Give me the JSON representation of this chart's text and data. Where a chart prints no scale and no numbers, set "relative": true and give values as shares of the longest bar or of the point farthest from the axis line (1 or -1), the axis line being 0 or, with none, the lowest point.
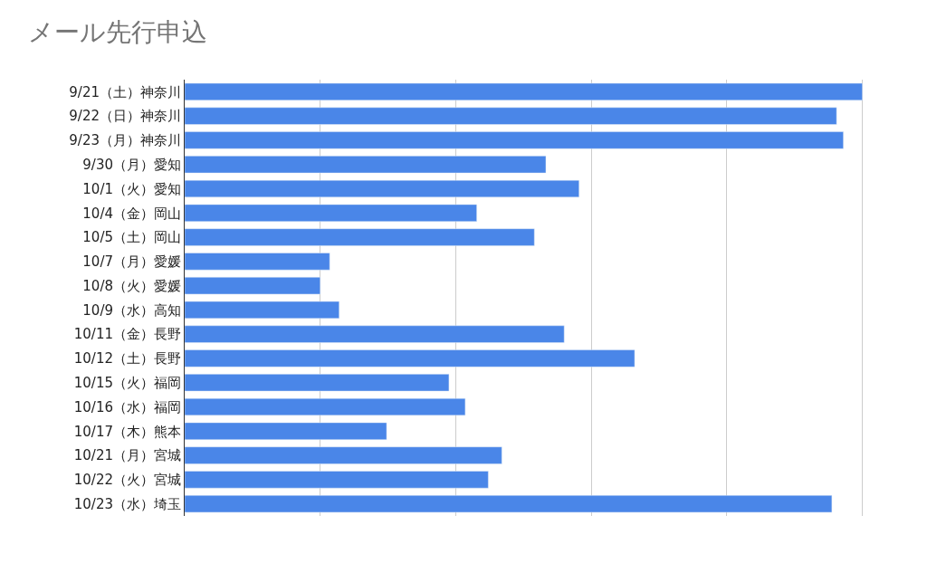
{
  "chart_data": {
    "type": "bar",
    "orientation": "horizontal",
    "relative": true,
    "title": "メール先行申込",
    "categories": [
      "9/21（土）神奈川",
      "9/22（日）神奈川",
      "9/23（月）神奈川",
      "9/30（月）愛知",
      "10/1（火）愛知",
      "10/4（金）岡山",
      "10/5（土）岡山",
      "10/7（月）愛媛",
      "10/8（火）愛媛",
      "10/9（水）高知",
      "10/11（金）長野",
      "10/12（土）長野",
      "10/15（火）福岡",
      "10/16（水）福岡",
      "10/17（木）熊本",
      "10/21（月）宮城",
      "10/22（火）宮城",
      "10/23（水）埼玉"
    ],
    "values": [
      1,
      0.962,
      0.972,
      0.533,
      0.582,
      0.431,
      0.516,
      0.214,
      0.2,
      0.228,
      0.56,
      0.664,
      0.39,
      0.414,
      0.298,
      0.468,
      0.448,
      0.955
    ],
    "color": "#4a86e8",
    "grid": "x"
  }
}
